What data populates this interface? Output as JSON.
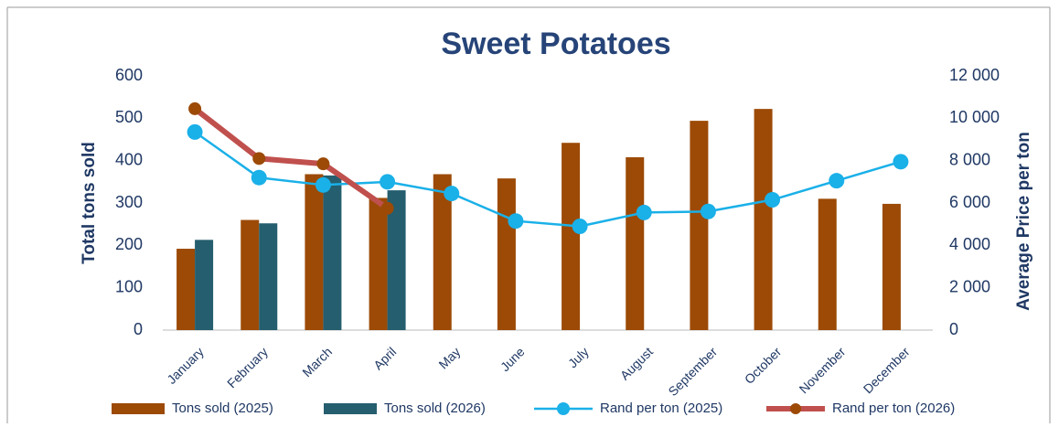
{
  "chart_data": {
    "type": "bar-line",
    "title": "Sweet Potatoes",
    "ylabel": "Total tons sold",
    "y2label": "Average Price per ton",
    "categories": [
      "January",
      "February",
      "March",
      "April",
      "May",
      "June",
      "July",
      "August",
      "September",
      "October",
      "November",
      "December"
    ],
    "series": [
      {
        "name": "Tons sold (2025)",
        "type": "bar",
        "color": "#9c4a06",
        "values": [
          192,
          260,
          368,
          312,
          368,
          358,
          442,
          408,
          494,
          522,
          310,
          298
        ]
      },
      {
        "name": "Tons sold (2026)",
        "type": "bar",
        "color": "#255e6e",
        "values": [
          213,
          252,
          365,
          330,
          null,
          null,
          null,
          null,
          null,
          null,
          null,
          null
        ]
      },
      {
        "name": "Rand per ton (2025)",
        "type": "line",
        "axis": "y2",
        "color": "#1ab0e8",
        "marker_color": "#1ab0e8",
        "values": [
          9350,
          7200,
          6850,
          7000,
          6450,
          5150,
          4900,
          5550,
          5600,
          6150,
          7050,
          7950
        ]
      },
      {
        "name": "Rand per ton (2026)",
        "type": "line",
        "axis": "y2",
        "color": "#c0504d",
        "marker_color": "#9c4a06",
        "values": [
          10450,
          8100,
          7850,
          5750,
          null,
          null,
          null,
          null,
          null,
          null,
          null,
          null
        ]
      }
    ],
    "ylim": [
      0,
      600
    ],
    "yticks": [
      0,
      100,
      200,
      300,
      400,
      500,
      600
    ],
    "y2lim": [
      0,
      12000
    ],
    "y2ticks": [
      0,
      {
        "value": 2000,
        "label": "2 000"
      },
      {
        "value": 4000,
        "label": "4 000"
      },
      {
        "value": 6000,
        "label": "6 000"
      },
      {
        "value": 8000,
        "label": "8 000"
      },
      {
        "value": 10000,
        "label": "10 000"
      },
      {
        "value": 12000,
        "label": "12 000"
      }
    ],
    "legend": "bottom"
  }
}
